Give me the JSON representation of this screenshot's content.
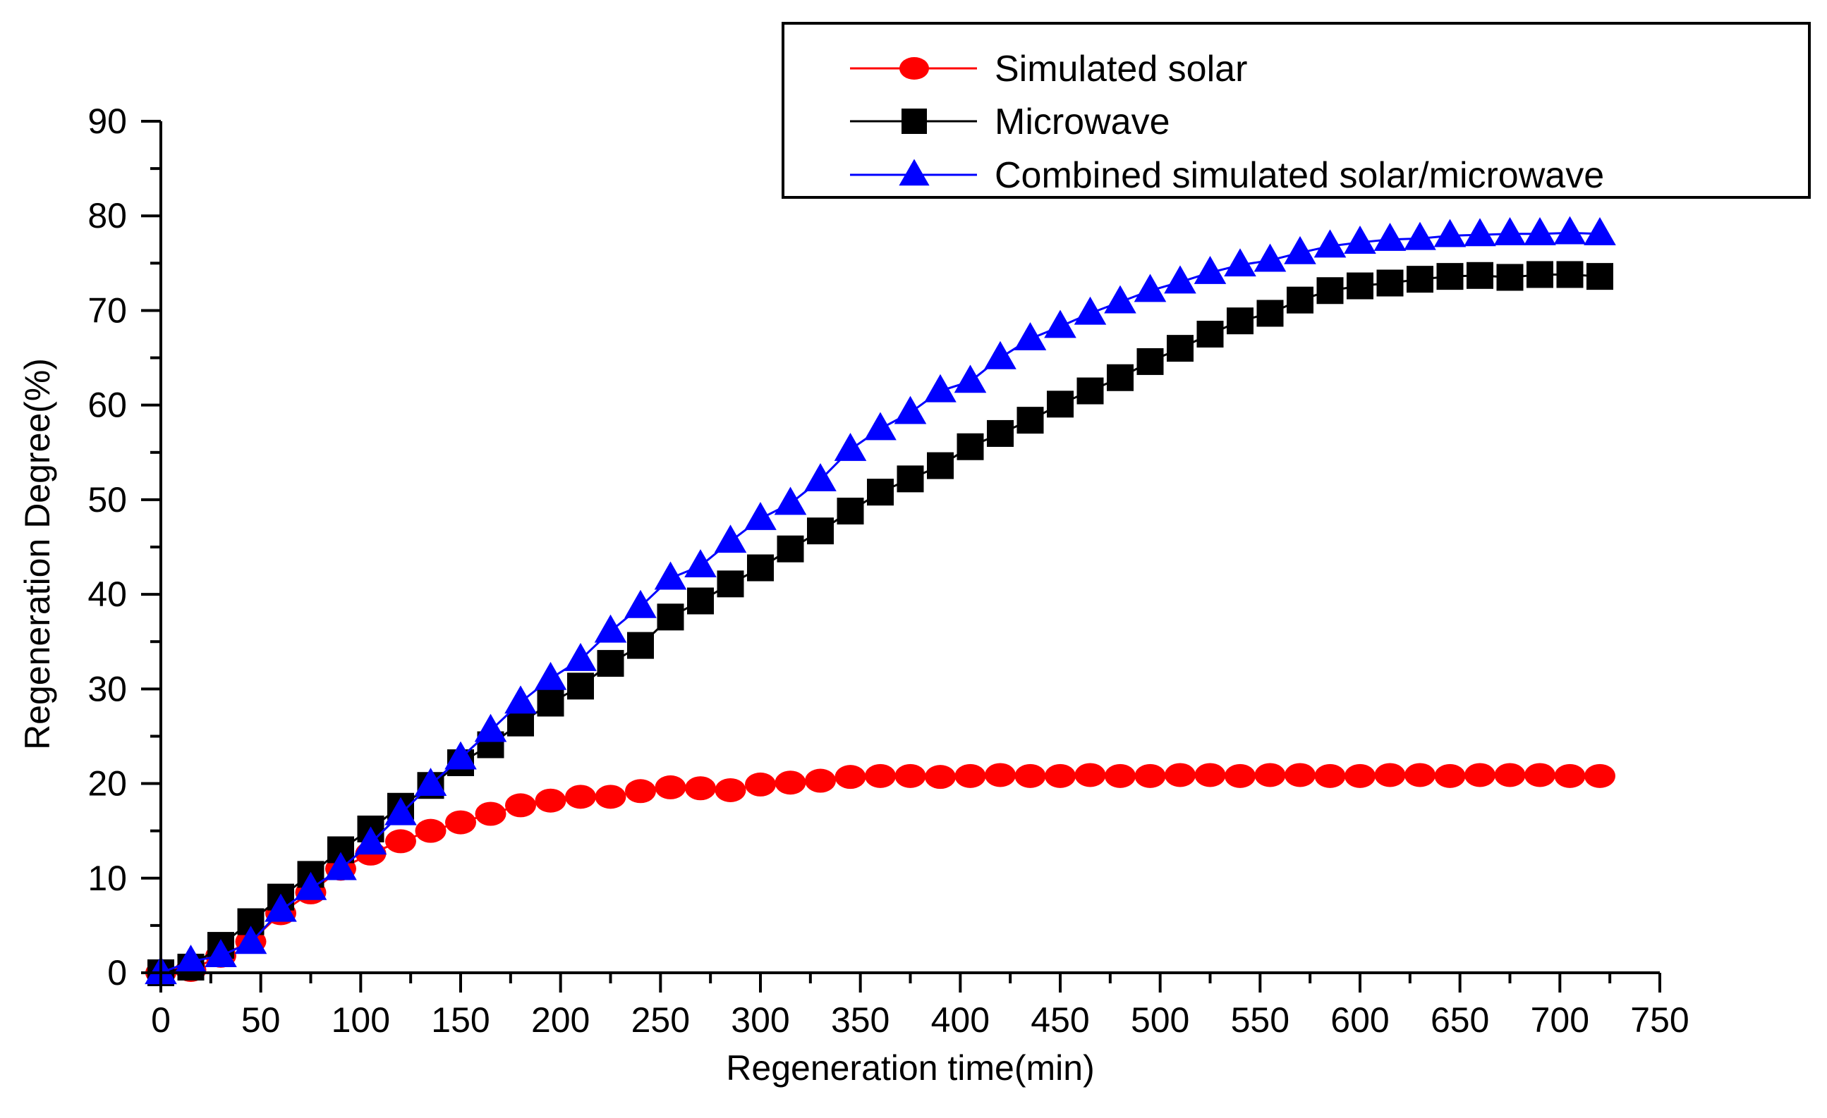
{
  "chart_data": {
    "type": "line",
    "title": "",
    "xlabel": "Regeneration time(min)",
    "ylabel": "Regeneration Degree(%)",
    "xlim": [
      0,
      750
    ],
    "ylim": [
      0,
      90
    ],
    "xticks": [
      "0",
      "50",
      "100",
      "150",
      "200",
      "250",
      "300",
      "350",
      "400",
      "450",
      "500",
      "550",
      "600",
      "650",
      "700",
      "750"
    ],
    "yticks": [
      "0",
      "10",
      "20",
      "30",
      "40",
      "50",
      "60",
      "70",
      "80",
      "90"
    ],
    "grid": false,
    "legend_position": "top-right",
    "x": [
      0,
      15,
      30,
      45,
      60,
      75,
      90,
      105,
      120,
      135,
      150,
      165,
      180,
      195,
      210,
      225,
      240,
      255,
      270,
      285,
      300,
      315,
      330,
      345,
      360,
      375,
      390,
      405,
      420,
      435,
      450,
      465,
      480,
      495,
      510,
      525,
      540,
      555,
      570,
      585,
      600,
      615,
      630,
      645,
      660,
      675,
      690,
      705,
      720
    ],
    "series": [
      {
        "name": "Simulated solar",
        "color": "#ff0000",
        "marker": "circle",
        "values": [
          0,
          0.3,
          1.8,
          3.3,
          6.3,
          8.5,
          11.0,
          12.6,
          13.9,
          15.0,
          15.9,
          16.8,
          17.7,
          18.2,
          18.6,
          18.6,
          19.2,
          19.6,
          19.5,
          19.3,
          19.9,
          20.1,
          20.3,
          20.7,
          20.8,
          20.8,
          20.7,
          20.8,
          20.9,
          20.8,
          20.8,
          20.9,
          20.8,
          20.8,
          20.9,
          20.9,
          20.8,
          20.9,
          20.9,
          20.8,
          20.8,
          20.9,
          20.9,
          20.8,
          20.9,
          20.9,
          20.9,
          20.8,
          20.8
        ]
      },
      {
        "name": "Microwave",
        "color": "#000000",
        "marker": "square",
        "values": [
          0,
          0.6,
          2.9,
          5.4,
          8.0,
          10.4,
          13.0,
          15.2,
          17.6,
          19.8,
          22.2,
          24.1,
          26.4,
          28.5,
          30.3,
          32.7,
          34.6,
          37.6,
          39.3,
          41.1,
          42.8,
          44.8,
          46.7,
          48.8,
          50.8,
          52.2,
          53.6,
          55.6,
          57.0,
          58.4,
          60.1,
          61.5,
          62.9,
          64.6,
          66.0,
          67.5,
          68.9,
          69.7,
          71.1,
          72.1,
          72.6,
          72.9,
          73.3,
          73.6,
          73.7,
          73.5,
          73.8,
          73.8,
          73.6
        ]
      },
      {
        "name": "Combined simulated solar/microwave",
        "color": "#0000ff",
        "marker": "triangle",
        "values": [
          0,
          1.2,
          1.8,
          3.2,
          6.6,
          8.9,
          11.0,
          13.7,
          16.8,
          19.9,
          22.7,
          25.6,
          28.6,
          31.1,
          33.1,
          36.1,
          38.7,
          41.7,
          43.0,
          45.6,
          48.0,
          49.6,
          52.1,
          55.3,
          57.5,
          59.2,
          61.5,
          62.5,
          65.0,
          67.0,
          68.3,
          69.7,
          70.9,
          72.1,
          73.0,
          74.0,
          74.8,
          75.3,
          76.1,
          76.8,
          77.2,
          77.5,
          77.6,
          77.9,
          78.0,
          78.1,
          78.1,
          78.2,
          78.1
        ]
      }
    ]
  }
}
